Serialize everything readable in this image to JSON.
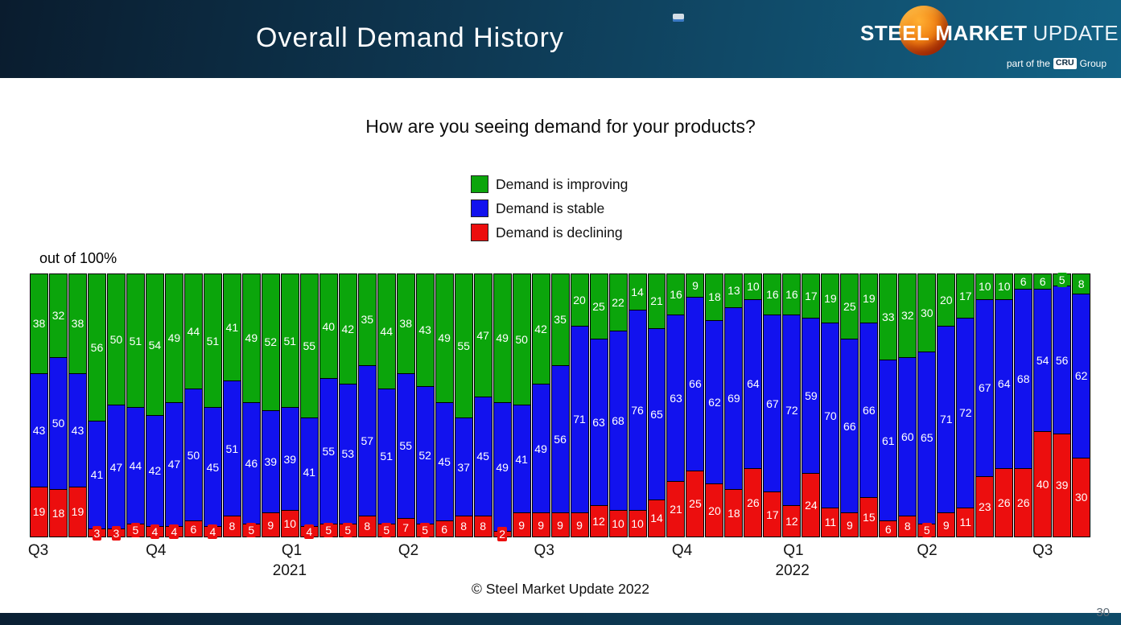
{
  "header": {
    "title": "Overall Demand History",
    "logo": {
      "steel": "STEEL",
      "market": "MARKET",
      "update": "UPDATE",
      "tagline_prefix": "part of the",
      "cru": "CRU",
      "tagline_suffix": "Group"
    }
  },
  "question": "How are you seeing demand for your products?",
  "legend": [
    {
      "label": "Demand is improving",
      "color": "#0ba50b"
    },
    {
      "label": "Demand is stable",
      "color": "#1212ee"
    },
    {
      "label": "Demand is declining",
      "color": "#ec0e0e"
    }
  ],
  "axis_note": "out of 100%",
  "footer": {
    "copyright": "© Steel Market Update 2022",
    "page_number": "30"
  },
  "chart_data": {
    "type": "bar",
    "stacked": true,
    "stack_total": 100,
    "title": "How are you seeing demand for your products?",
    "ylabel": "out of 100%",
    "grid": false,
    "legend_position": "top-center",
    "n_bars": 55,
    "series": [
      {
        "name": "Demand is improving",
        "key": "improving",
        "position": "top",
        "color": "#0ba50b",
        "values": [
          38,
          32,
          38,
          56,
          50,
          51,
          54,
          49,
          44,
          51,
          41,
          49,
          52,
          51,
          55,
          40,
          42,
          35,
          44,
          38,
          43,
          49,
          55,
          47,
          49,
          50,
          42,
          35,
          20,
          25,
          22,
          14,
          21,
          16,
          9,
          18,
          13,
          10,
          16,
          16,
          17,
          19,
          25,
          19,
          33,
          32,
          30,
          20,
          17,
          10,
          10,
          6,
          6,
          5,
          8
        ]
      },
      {
        "name": "Demand is stable",
        "key": "stable",
        "position": "middle",
        "color": "#1212ee",
        "values": [
          43,
          50,
          43,
          41,
          47,
          44,
          42,
          47,
          50,
          45,
          51,
          46,
          39,
          39,
          41,
          55,
          53,
          57,
          51,
          55,
          52,
          45,
          37,
          45,
          49,
          41,
          49,
          56,
          71,
          63,
          68,
          76,
          65,
          63,
          66,
          62,
          69,
          64,
          67,
          72,
          59,
          70,
          66,
          66,
          61,
          60,
          65,
          71,
          72,
          67,
          64,
          68,
          54,
          56,
          62
        ]
      },
      {
        "name": "Demand is declining",
        "key": "declining",
        "position": "bottom",
        "color": "#ec0e0e",
        "values": [
          19,
          18,
          19,
          3,
          3,
          5,
          4,
          4,
          6,
          4,
          8,
          5,
          9,
          10,
          4,
          5,
          5,
          8,
          5,
          7,
          5,
          6,
          8,
          8,
          2,
          9,
          9,
          9,
          9,
          12,
          10,
          10,
          14,
          21,
          25,
          20,
          18,
          26,
          17,
          12,
          24,
          11,
          9,
          15,
          6,
          8,
          5,
          9,
          11,
          23,
          26,
          26,
          40,
          39,
          30
        ]
      }
    ],
    "x_axis": {
      "quarter_labels": [
        {
          "text": "Q3",
          "pos": 0.8
        },
        {
          "text": "Q4",
          "pos": 11.9
        },
        {
          "text": "Q1",
          "pos": 24.7
        },
        {
          "text": "Q2",
          "pos": 35.7
        },
        {
          "text": "Q3",
          "pos": 48.5
        },
        {
          "text": "Q4",
          "pos": 61.5
        },
        {
          "text": "Q1",
          "pos": 72.0
        },
        {
          "text": "Q2",
          "pos": 84.6
        },
        {
          "text": "Q3",
          "pos": 95.5
        }
      ],
      "year_labels": [
        {
          "text": "2021",
          "pos": 24.5
        },
        {
          "text": "2022",
          "pos": 71.9
        }
      ]
    }
  }
}
